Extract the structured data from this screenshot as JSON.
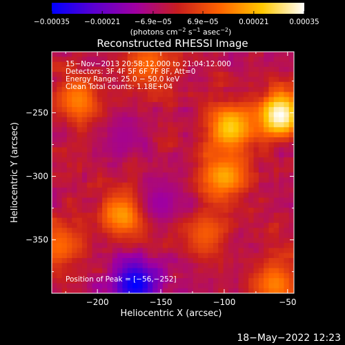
{
  "chart_data": {
    "type": "heatmap",
    "title": "Reconstructed RHESSI Image",
    "xlabel": "Heliocentric X (arcsec)",
    "ylabel": "Heliocentric Y (arcsec)",
    "xlim": [
      -236,
      -45
    ],
    "ylim": [
      -392,
      -202
    ],
    "x_ticks": [
      -200,
      -150,
      -100,
      -50
    ],
    "y_ticks": [
      -250,
      -300,
      -350
    ],
    "colorbar": {
      "label_parts": [
        "(photons cm",
        "−2",
        " s",
        "−1",
        " asec",
        "−2",
        ")"
      ],
      "ticks": [
        -0.00035,
        -0.00021,
        -6.9e-05,
        6.9e-05,
        0.00021,
        0.00035
      ],
      "tick_labels": [
        "−0.00035",
        "−0.00021",
        "−6.9e−05",
        "6.9e−05",
        "0.00021",
        "0.00035"
      ],
      "min": -0.00035,
      "max": 0.00035,
      "colors": [
        "#0000ff",
        "#5a00d0",
        "#a000a0",
        "#c81e1e",
        "#ff6400",
        "#ffc800",
        "#ffffff"
      ]
    },
    "annotations": [
      "15−Nov−2013 20:58:12.000 to 21:04:12.000",
      "Detectors: 3F 4F 5F 6F 7F 8F, Att=0",
      "Energy Range: 25.0 − 50.0 keV",
      "Clean     Total counts: 1.18E+04",
      "Position of Peak = [−56,−252]"
    ],
    "peak": {
      "x": -56,
      "y": -252
    },
    "bright_regions": [
      {
        "x": -56,
        "y": -252,
        "level": 0.00035
      },
      {
        "x": -95,
        "y": -262,
        "level": 0.00025
      },
      {
        "x": -100,
        "y": -300,
        "level": 0.0002
      },
      {
        "x": -178,
        "y": -330,
        "level": 0.0002
      },
      {
        "x": -215,
        "y": -240,
        "level": 0.00015
      },
      {
        "x": -160,
        "y": -212,
        "level": 0.00012
      },
      {
        "x": -115,
        "y": -345,
        "level": 0.0001
      },
      {
        "x": -230,
        "y": -355,
        "level": 0.00012
      },
      {
        "x": -60,
        "y": -385,
        "level": 0.00015
      },
      {
        "x": -180,
        "y": -268,
        "level": -0.0001
      },
      {
        "x": -150,
        "y": -320,
        "level": -0.00012
      },
      {
        "x": -170,
        "y": -385,
        "level": -0.00035
      }
    ]
  },
  "footer": {
    "timestamp": "18−May−2022 12:23"
  }
}
